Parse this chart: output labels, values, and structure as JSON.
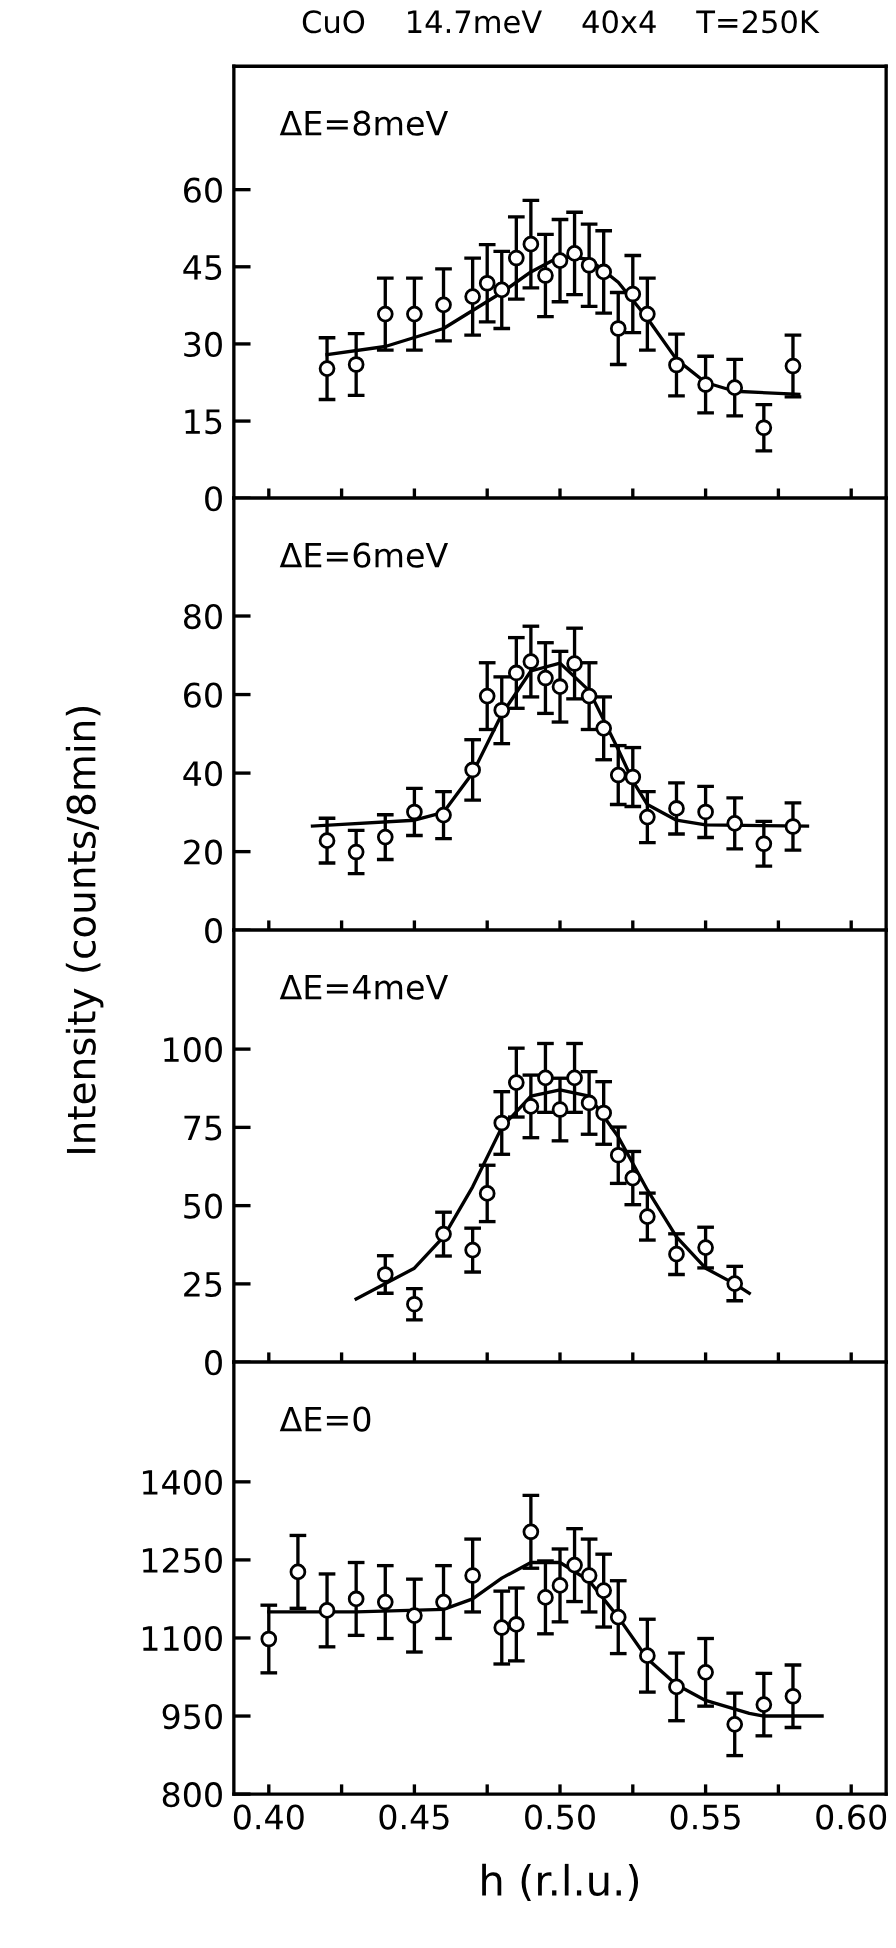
{
  "chart_data": [
    {
      "type": "scatter",
      "title": "CuO    14.7meV    40x4    T=250K",
      "annotations": [
        "ΔE=8meV"
      ],
      "xlim": [
        0.388,
        0.612
      ],
      "ylim": [
        0,
        84
      ],
      "yticks": [
        0,
        15,
        30,
        45,
        60
      ],
      "xticks": [
        0.4,
        {
          "value": 0.425,
          "label": null
        },
        0.45,
        {
          "value": 0.475,
          "label": null
        },
        0.5,
        {
          "value": 0.525,
          "label": null
        },
        0.55,
        {
          "value": 0.575,
          "label": null
        },
        0.6
      ],
      "tick_labels": "y",
      "grid": false,
      "legend": false,
      "series": [
        {
          "marker": "circle",
          "color": "#000000",
          "x": [
            0.42,
            0.43,
            0.44,
            0.45,
            0.46,
            0.47,
            0.475,
            0.48,
            0.485,
            0.49,
            0.495,
            0.5,
            0.505,
            0.51,
            0.515,
            0.52,
            0.525,
            0.53,
            0.54,
            0.55,
            0.56,
            0.57,
            0.58
          ],
          "values": [
            25.2,
            26.0,
            35.8,
            35.8,
            37.6,
            39.2,
            41.8,
            40.5,
            46.7,
            49.4,
            43.3,
            46.2,
            47.6,
            45.3,
            44.0,
            33.0,
            39.7,
            35.8,
            25.9,
            22.1,
            21.5,
            13.7,
            25.7
          ],
          "errors": [
            6,
            6,
            7,
            7,
            7,
            7.5,
            7.5,
            7.5,
            8,
            8.5,
            8,
            8,
            8,
            8,
            8,
            7,
            7.5,
            7,
            6,
            5.5,
            5.5,
            4.5,
            6
          ]
        },
        {
          "type": "line",
          "color": "#000000",
          "x": [
            0.42,
            0.44,
            0.46,
            0.48,
            0.49,
            0.5,
            0.51,
            0.52,
            0.53,
            0.54,
            0.55,
            0.56,
            0.582
          ],
          "values": [
            27.9,
            29.5,
            33,
            40,
            44,
            47,
            46.5,
            42,
            35,
            27,
            22.5,
            20.8,
            20.2
          ]
        }
      ]
    },
    {
      "type": "scatter",
      "ylabel": "Intensity (counts/8min)",
      "annotations": [
        "ΔE=6meV"
      ],
      "xlim": [
        0.388,
        0.612
      ],
      "ylim": [
        0,
        110
      ],
      "yticks": [
        0,
        20,
        40,
        60,
        80
      ],
      "xticks": [
        0.4,
        {
          "value": 0.425,
          "label": null
        },
        0.45,
        {
          "value": 0.475,
          "label": null
        },
        0.5,
        {
          "value": 0.525,
          "label": null
        },
        0.55,
        {
          "value": 0.575,
          "label": null
        },
        0.6
      ],
      "tick_labels": "y",
      "grid": false,
      "legend": false,
      "series": [
        {
          "marker": "circle",
          "color": "#000000",
          "x": [
            0.42,
            0.43,
            0.44,
            0.45,
            0.46,
            0.47,
            0.475,
            0.48,
            0.485,
            0.49,
            0.495,
            0.5,
            0.505,
            0.51,
            0.515,
            0.52,
            0.525,
            0.53,
            0.54,
            0.55,
            0.56,
            0.57,
            0.58
          ],
          "values": [
            22.8,
            19.9,
            23.7,
            30.1,
            29.3,
            40.8,
            59.6,
            56.0,
            65.5,
            68.4,
            64.2,
            62.0,
            67.9,
            59.6,
            51.4,
            39.5,
            39.0,
            28.8,
            31.0,
            30.1,
            27.2,
            22.0,
            26.4
          ],
          "errors": [
            5.7,
            5.5,
            5.7,
            6,
            6,
            7.7,
            8.5,
            8.5,
            9,
            9,
            9,
            9,
            9,
            8.5,
            8,
            7.5,
            7.5,
            6.5,
            6.5,
            6.5,
            6.5,
            5.7,
            6
          ]
        },
        {
          "type": "line",
          "color": "#000000",
          "x": [
            0.415,
            0.45,
            0.46,
            0.47,
            0.48,
            0.49,
            0.5,
            0.51,
            0.52,
            0.525,
            0.53,
            0.54,
            0.55,
            0.585
          ],
          "values": [
            26.5,
            28,
            30,
            40,
            55,
            66,
            68,
            61,
            46,
            38,
            32,
            28,
            26.8,
            26.5
          ]
        }
      ]
    },
    {
      "type": "scatter",
      "annotations": [
        "ΔE=4meV"
      ],
      "xlim": [
        0.388,
        0.612
      ],
      "ylim": [
        0,
        138
      ],
      "yticks": [
        0,
        25,
        50,
        75,
        100
      ],
      "xticks": [
        0.4,
        {
          "value": 0.425,
          "label": null
        },
        0.45,
        {
          "value": 0.475,
          "label": null
        },
        0.5,
        {
          "value": 0.525,
          "label": null
        },
        0.55,
        {
          "value": 0.575,
          "label": null
        },
        0.6
      ],
      "tick_labels": "y",
      "grid": false,
      "legend": false,
      "series": [
        {
          "marker": "circle",
          "color": "#000000",
          "x": [
            0.44,
            0.45,
            0.46,
            0.47,
            0.475,
            0.48,
            0.485,
            0.49,
            0.495,
            0.5,
            0.505,
            0.51,
            0.515,
            0.52,
            0.525,
            0.53,
            0.54,
            0.55,
            0.56
          ],
          "values": [
            28.0,
            18.5,
            40.9,
            35.8,
            53.9,
            76.4,
            89.3,
            81.7,
            90.8,
            80.7,
            90.8,
            82.8,
            79.6,
            66.1,
            58.8,
            46.5,
            34.5,
            36.6,
            25.1
          ],
          "errors": [
            6,
            5,
            7,
            7,
            9,
            10,
            11,
            10,
            11,
            10,
            11,
            10,
            10,
            9,
            8.5,
            7.5,
            6.5,
            6.5,
            5.5
          ]
        },
        {
          "type": "line",
          "color": "#000000",
          "x": [
            0.43,
            0.45,
            0.46,
            0.47,
            0.48,
            0.49,
            0.5,
            0.51,
            0.52,
            0.53,
            0.54,
            0.55,
            0.56,
            0.565
          ],
          "values": [
            20.2,
            30,
            40,
            56,
            75,
            85,
            87,
            85,
            72,
            55,
            40,
            30,
            25,
            22
          ]
        }
      ]
    },
    {
      "type": "scatter",
      "annotations": [
        "ΔE=0"
      ],
      "xlabel": "h (r.l.u.)",
      "xlim": [
        0.388,
        0.612
      ],
      "ylim": [
        800,
        1630
      ],
      "yticks": [
        800,
        950,
        1100,
        1250,
        1400
      ],
      "xticks": [
        {
          "value": 0.4,
          "label": "0.40"
        },
        {
          "value": 0.425,
          "label": null
        },
        {
          "value": 0.45,
          "label": "0.45"
        },
        {
          "value": 0.475,
          "label": null
        },
        {
          "value": 0.5,
          "label": "0.50"
        },
        {
          "value": 0.525,
          "label": null
        },
        {
          "value": 0.55,
          "label": "0.55"
        },
        {
          "value": 0.575,
          "label": null
        },
        {
          "value": 0.6,
          "label": "0.60"
        }
      ],
      "grid": false,
      "legend": false,
      "series": [
        {
          "marker": "circle",
          "color": "#000000",
          "x": [
            0.4,
            0.41,
            0.42,
            0.43,
            0.44,
            0.45,
            0.46,
            0.47,
            0.48,
            0.485,
            0.49,
            0.495,
            0.5,
            0.505,
            0.51,
            0.515,
            0.52,
            0.53,
            0.54,
            0.55,
            0.56,
            0.57,
            0.58
          ],
          "values": [
            1098,
            1227,
            1153,
            1175,
            1169,
            1143,
            1169,
            1220,
            1120,
            1126,
            1304,
            1178,
            1201,
            1240,
            1220,
            1191,
            1140,
            1066,
            1006,
            1034,
            934,
            972,
            988
          ],
          "errors": [
            65,
            70,
            70,
            70,
            70,
            70,
            70,
            70,
            70,
            70,
            70,
            70,
            70,
            70,
            70,
            70,
            70,
            70,
            65,
            65,
            60,
            60,
            60
          ]
        },
        {
          "type": "line",
          "color": "#000000",
          "x": [
            0.4,
            0.43,
            0.46,
            0.47,
            0.48,
            0.49,
            0.5,
            0.51,
            0.52,
            0.53,
            0.54,
            0.55,
            0.565,
            0.57,
            0.59
          ],
          "values": [
            1150,
            1150,
            1155,
            1175,
            1215,
            1245,
            1245,
            1210,
            1140,
            1060,
            1010,
            980,
            955,
            950,
            950
          ]
        }
      ]
    }
  ]
}
